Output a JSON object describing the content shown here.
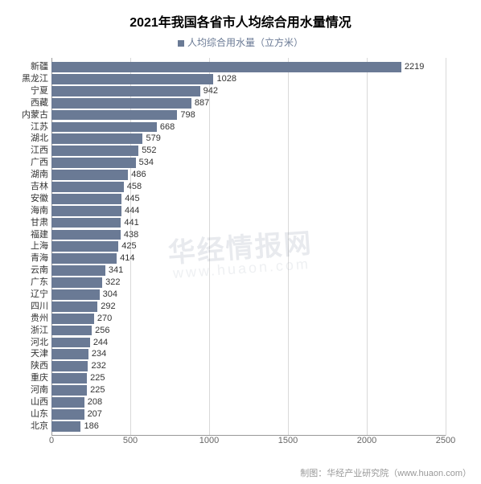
{
  "chart": {
    "type": "bar-horizontal",
    "title": "2021年我国各省市人均综合用水量情况",
    "title_fontsize": 16,
    "title_color": "#000000",
    "legend_label": "人均综合用水量（立方米）",
    "legend_fontsize": 12,
    "legend_color": "#6a7a95",
    "background_color": "#ffffff",
    "grid_color": "#d9d9d9",
    "axis_color": "#999999",
    "bar_color": "#6a7a95",
    "value_label_color": "#333333",
    "value_label_fontsize": 11,
    "y_label_fontsize": 11,
    "y_label_color": "#333333",
    "x_tick_fontsize": 11,
    "x_tick_color": "#666666",
    "xlim": [
      0,
      2500
    ],
    "x_tick_step": 500,
    "x_ticks": [
      0,
      500,
      1000,
      1500,
      2000,
      2500
    ],
    "categories": [
      "新疆",
      "黑龙江",
      "宁夏",
      "西藏",
      "内蒙古",
      "江苏",
      "湖北",
      "江西",
      "广西",
      "湖南",
      "吉林",
      "安徽",
      "海南",
      "甘肃",
      "福建",
      "上海",
      "青海",
      "云南",
      "广东",
      "辽宁",
      "四川",
      "贵州",
      "浙江",
      "河北",
      "天津",
      "陕西",
      "重庆",
      "河南",
      "山西",
      "山东",
      "北京"
    ],
    "values": [
      2219,
      1028,
      942,
      887,
      798,
      668,
      579,
      552,
      534,
      486,
      458,
      445,
      444,
      441,
      438,
      425,
      414,
      341,
      322,
      304,
      292,
      270,
      256,
      244,
      234,
      232,
      225,
      225,
      208,
      207,
      186
    ]
  },
  "watermark": {
    "line1": "华经情报网",
    "line1_fontsize": 34,
    "line2": "www.huaon.com",
    "line2_fontsize": 18,
    "opacity": 0.12
  },
  "footer": {
    "text": "制图：华经产业研究院（www.huaon.com）",
    "fontsize": 11,
    "color": "#999999"
  }
}
